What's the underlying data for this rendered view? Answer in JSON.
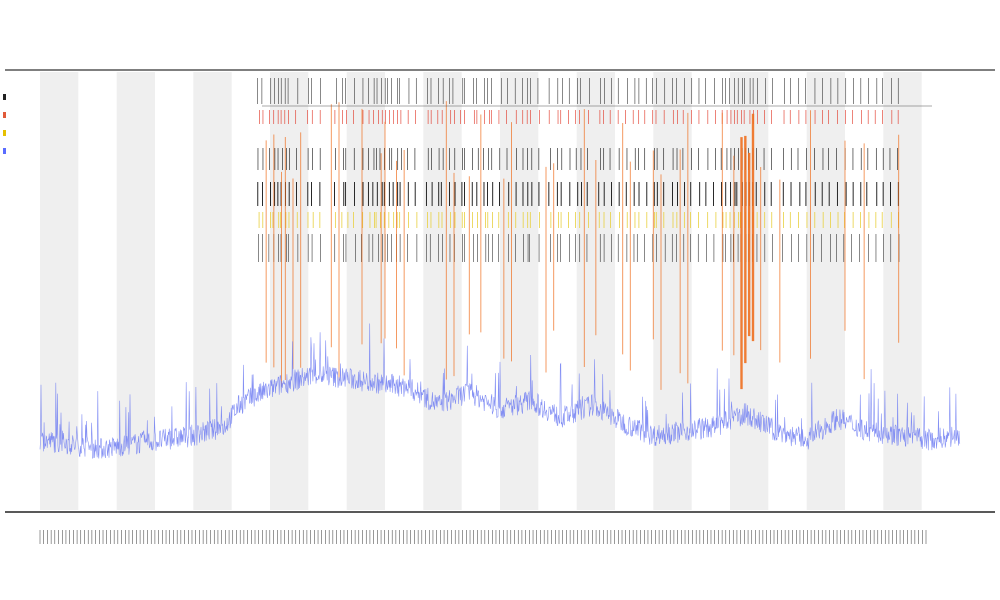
{
  "header": {
    "title_lines": [
      "",
      "",
      ""
    ]
  },
  "legend": {
    "items": [
      {
        "label": "",
        "color": "#222222"
      },
      {
        "label": "",
        "color": "#e05a3a"
      },
      {
        "label": "",
        "color": "#e6c000"
      },
      {
        "label": "",
        "color": "#5a6cff"
      }
    ]
  },
  "colors": {
    "band": "#efefef",
    "signal": "#6f7cf2",
    "spike": "#f07020",
    "tick_black": "#111111",
    "tick_red": "#e03020",
    "tick_yellow": "#e8d040",
    "axis": "#222222"
  },
  "chart_data": {
    "type": "line",
    "title": "",
    "xlabel": "",
    "ylabel": "",
    "grid": false,
    "legend_position": "top-left",
    "x_range": [
      0,
      240
    ],
    "y_range": [
      0,
      1
    ],
    "shaded_bands": [
      [
        0,
        10
      ],
      [
        20,
        30
      ],
      [
        40,
        50
      ],
      [
        60,
        70
      ],
      [
        80,
        90
      ],
      [
        100,
        110
      ],
      [
        120,
        130
      ],
      [
        140,
        150
      ],
      [
        160,
        170
      ],
      [
        180,
        190
      ],
      [
        200,
        210
      ],
      [
        220,
        230
      ]
    ],
    "series": [
      {
        "values_description_free": true,
        "x": [
          0,
          8,
          16,
          24,
          32,
          40,
          48,
          52,
          56,
          64,
          72,
          80,
          88,
          96,
          104,
          112,
          120,
          128,
          136,
          144,
          152,
          160,
          168,
          176,
          184,
          192,
          200,
          208,
          216,
          224,
          232,
          240
        ],
        "y": [
          0.16,
          0.15,
          0.14,
          0.15,
          0.16,
          0.17,
          0.19,
          0.24,
          0.26,
          0.29,
          0.31,
          0.3,
          0.29,
          0.28,
          0.24,
          0.27,
          0.23,
          0.25,
          0.21,
          0.24,
          0.2,
          0.17,
          0.18,
          0.19,
          0.22,
          0.18,
          0.16,
          0.21,
          0.18,
          0.17,
          0.16,
          0.17
        ]
      }
    ],
    "spike_events": [
      59,
      61,
      63,
      64,
      66,
      68,
      76,
      78,
      84,
      89,
      90,
      93,
      95,
      106,
      108,
      112,
      115,
      121,
      123,
      132,
      134,
      142,
      145,
      152,
      154,
      160,
      162,
      167,
      169,
      178,
      181,
      183,
      184,
      185,
      186,
      188,
      193,
      201,
      210,
      215,
      224
    ],
    "event_ticks": [
      57,
      58,
      60,
      61,
      62,
      63,
      64,
      65,
      67,
      70,
      71,
      73,
      77,
      79,
      80,
      82,
      84,
      86,
      87,
      88,
      89,
      90,
      91,
      92,
      93,
      94,
      96,
      98,
      101,
      102,
      104,
      105,
      107,
      108,
      110,
      111,
      113,
      114,
      116,
      117,
      118,
      120,
      122,
      124,
      126,
      127,
      128,
      130,
      133,
      135,
      136,
      138,
      140,
      141,
      143,
      146,
      147,
      149,
      151,
      153,
      155,
      156,
      158,
      160,
      161,
      163,
      165,
      166,
      168,
      170,
      172,
      174,
      176,
      178,
      179,
      180,
      181,
      182,
      183,
      184,
      185,
      186,
      187,
      189,
      191,
      194,
      196,
      198,
      200,
      202,
      204,
      206,
      208,
      210,
      212,
      214,
      216,
      218,
      220,
      222,
      224
    ],
    "x_tick_count": 240
  }
}
